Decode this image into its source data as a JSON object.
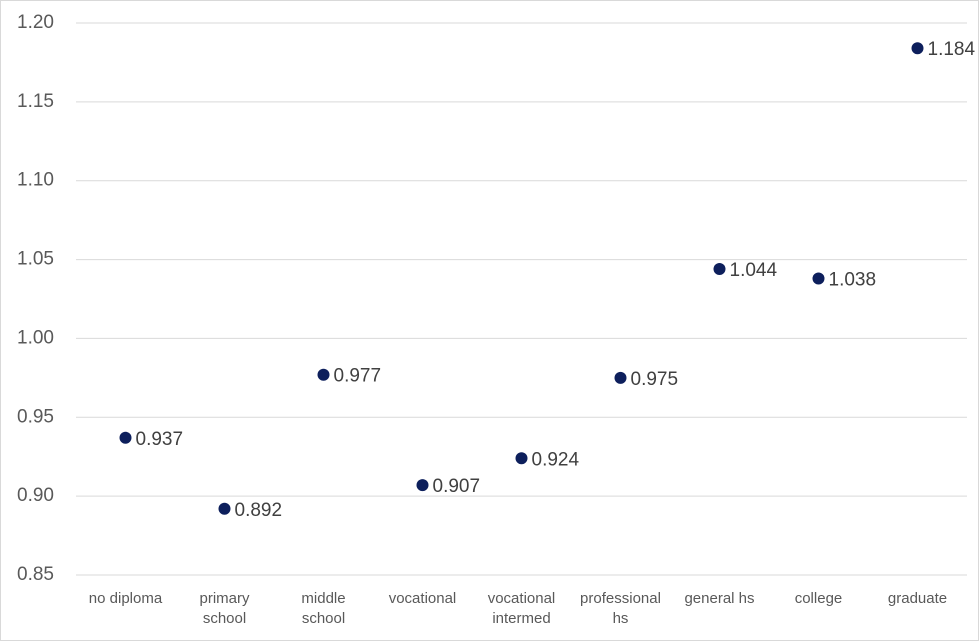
{
  "chart_data": {
    "type": "dot",
    "categories": [
      "no diploma",
      "primary school",
      "middle school",
      "vocational",
      "vocational intermed",
      "professional hs",
      "general hs",
      "college",
      "graduate"
    ],
    "values": [
      0.937,
      0.892,
      0.977,
      0.907,
      0.924,
      0.975,
      1.044,
      1.038,
      1.184
    ],
    "color": "#0d1f5c",
    "ylim": [
      0.85,
      1.2
    ],
    "yticks": [
      0.85,
      {
        "value": 0.9,
        "label": "0.90"
      },
      0.95,
      {
        "value": 1.0,
        "label": "1.00"
      },
      1.05,
      {
        "value": 1.1,
        "label": "1.10"
      },
      1.15,
      {
        "value": 1.2,
        "label": "1.20"
      }
    ],
    "grid": true
  }
}
